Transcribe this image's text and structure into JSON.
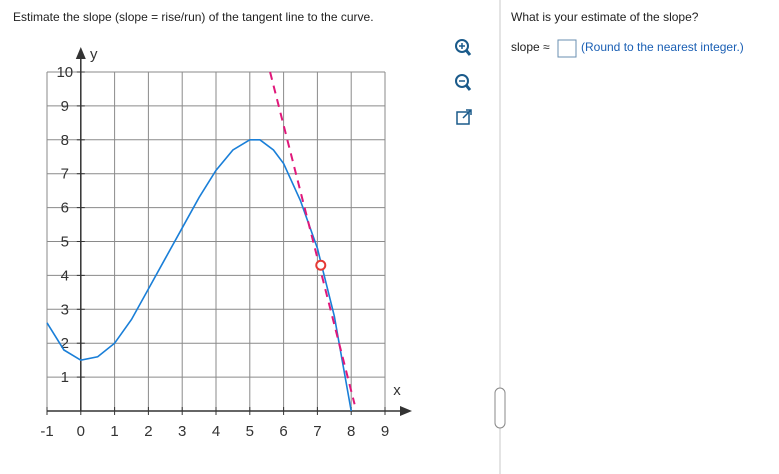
{
  "question": "Estimate the slope (slope = rise/run) of the tangent line to the curve.",
  "prompt": "What is your estimate of the slope?",
  "answer_label": "slope ≈",
  "hint": "(Round to the nearest integer.)",
  "chart_data": {
    "type": "line",
    "xlabel": "x",
    "ylabel": "y",
    "xlim": [
      -1,
      9
    ],
    "ylim": [
      0,
      10
    ],
    "xticks": [
      -1,
      0,
      1,
      2,
      3,
      4,
      5,
      6,
      7,
      8,
      9
    ],
    "yticks": [
      1,
      2,
      3,
      4,
      5,
      6,
      7,
      8,
      9,
      10
    ],
    "grid": true,
    "series": [
      {
        "color": "#1a7fd8",
        "x": [
          -1,
          -0.5,
          0,
          0.5,
          1,
          1.5,
          2,
          2.5,
          3,
          3.5,
          4,
          4.5,
          5,
          5.3,
          5.7,
          6,
          6.5,
          7,
          7.5,
          8
        ],
        "values": [
          2.6,
          1.8,
          1.5,
          1.6,
          2,
          2.7,
          3.6,
          4.5,
          5.4,
          6.3,
          7.1,
          7.7,
          8,
          8,
          7.7,
          7.3,
          6.2,
          4.8,
          2.8,
          0
        ]
      }
    ],
    "tangent": {
      "color": "#e0187a",
      "x": [
        5.6,
        8.1
      ],
      "values": [
        10,
        0.2
      ]
    },
    "point": {
      "x": 7.1,
      "y": 4.3,
      "color": "#e53935"
    }
  }
}
